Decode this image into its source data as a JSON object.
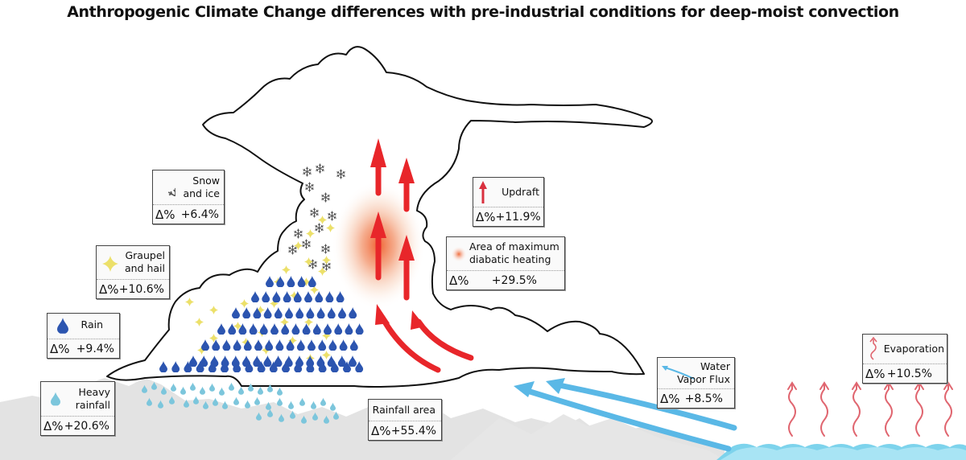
{
  "title": "Anthropogenic Climate Change differences with pre-industrial conditions for deep-moist convection",
  "delta_symbol": "Δ%",
  "colors": {
    "updraft_red": "#e8262a",
    "rain_blue": "#2c55b0",
    "heavy_rain_blue": "#7cc6dc",
    "graupel_yellow": "#ece06a",
    "vapor_blue": "#5ab8e6",
    "evaporation_pink": "#e06670",
    "heating_orange": "#ef6a3a",
    "ground_gray": "#e3e3e3",
    "sea_blue": "#7dd3ec"
  },
  "legend": [
    {
      "id": "snow",
      "icon": "snowflake-icon",
      "label_lines": [
        "Snow",
        "and ice"
      ],
      "value": "+6.4%"
    },
    {
      "id": "graupel",
      "icon": "graupel-star-icon",
      "label_lines": [
        "Graupel",
        "and hail"
      ],
      "value": "+10.6%"
    },
    {
      "id": "rain",
      "icon": "raindrop-icon",
      "label_lines": [
        "Rain"
      ],
      "value": "+9.4%"
    },
    {
      "id": "heavy",
      "icon": "heavy-raindrop-icon",
      "label_lines": [
        "Heavy",
        "rainfall"
      ],
      "value": "+20.6%"
    },
    {
      "id": "area",
      "icon": "",
      "label_lines": [
        "Rainfall area"
      ],
      "value": "+55.4%"
    },
    {
      "id": "updraft",
      "icon": "updraft-arrow-icon",
      "label_lines": [
        "Updraft"
      ],
      "value": "+11.9%"
    },
    {
      "id": "heating",
      "icon": "heating-blob-icon",
      "label_lines": [
        "Area of maximum",
        "diabatic heating"
      ],
      "value": "+29.5%"
    },
    {
      "id": "vapor",
      "icon": "vapor-arrow-icon",
      "label_lines": [
        "Water",
        "Vapor Flux"
      ],
      "value": "+8.5%"
    },
    {
      "id": "evap",
      "icon": "evaporation-wave-icon",
      "label_lines": [
        "Evaporation"
      ],
      "value": "+10.5%"
    }
  ]
}
